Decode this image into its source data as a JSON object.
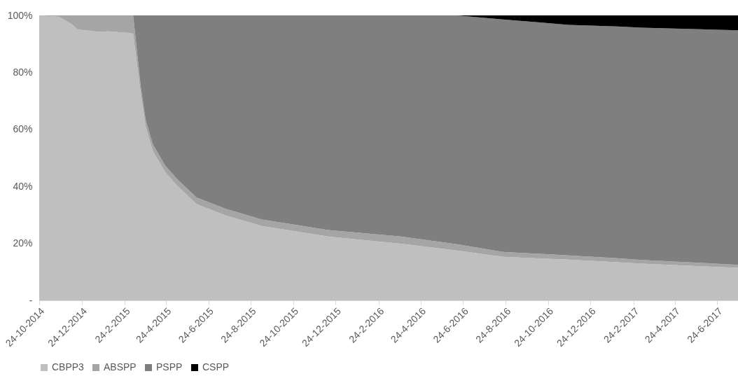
{
  "chart_data": {
    "type": "area",
    "stacked": true,
    "x": [
      "2014-10-24",
      "2014-11-22",
      "2014-12-11",
      "2014-12-18",
      "2015-01-15",
      "2015-02-01",
      "2015-03-05",
      "2015-03-08",
      "2015-03-19",
      "2015-03-26",
      "2015-04-05",
      "2015-04-23",
      "2015-05-10",
      "2015-06-07",
      "2015-07-19",
      "2015-09-09",
      "2015-12-13",
      "2016-03-26",
      "2016-06-15",
      "2016-08-20",
      "2016-11-22",
      "2017-01-31",
      "2017-03-07",
      "2017-07-24"
    ],
    "series": [
      {
        "name": "CBPP3",
        "color": "#bfbfbf",
        "values": [
          100,
          99.5,
          96.7,
          95.1,
          94.3,
          94.4,
          93.8,
          93.5,
          72.4,
          61,
          52.6,
          45,
          40.3,
          33.8,
          29.8,
          26.1,
          22.4,
          19.9,
          17.5,
          15.3,
          14.3,
          13.4,
          12.9,
          11.4
        ]
      },
      {
        "name": "ABSPP",
        "color": "#a5a5a5",
        "values": [
          0,
          0.5,
          3.3,
          4.9,
          5.7,
          5.6,
          6.2,
          6.5,
          2.5,
          2.3,
          2.3,
          2.3,
          2.3,
          2.3,
          2.3,
          2.3,
          2.3,
          2.5,
          2.2,
          1.7,
          1.5,
          1.4,
          1.3,
          1.1
        ]
      },
      {
        "name": "PSPP",
        "color": "#7f7f7f",
        "values": [
          0,
          0,
          0,
          0,
          0,
          0,
          0,
          0,
          25.1,
          36.7,
          45.1,
          52.7,
          57.4,
          63.9,
          67.9,
          71.6,
          75.3,
          77.6,
          80.3,
          81.6,
          80.9,
          81.3,
          81.5,
          82.3
        ]
      },
      {
        "name": "CSPP",
        "color": "#000000",
        "values": [
          0,
          0,
          0,
          0,
          0,
          0,
          0,
          0,
          0,
          0,
          0,
          0,
          0,
          0,
          0,
          0,
          0,
          0,
          0,
          1.4,
          3.3,
          3.9,
          4.3,
          5.2
        ]
      }
    ],
    "xlim": [
      "2014-10-24",
      "2017-07-24"
    ],
    "xticks": [
      {
        "value": "2014-10-24",
        "label": "24-10-2014"
      },
      {
        "value": "2014-12-24",
        "label": "24-12-2014"
      },
      {
        "value": "2015-02-24",
        "label": "24-2-2015"
      },
      {
        "value": "2015-04-24",
        "label": "24-4-2015"
      },
      {
        "value": "2015-06-24",
        "label": "24-6-2015"
      },
      {
        "value": "2015-08-24",
        "label": "24-8-2015"
      },
      {
        "value": "2015-10-24",
        "label": "24-10-2015"
      },
      {
        "value": "2015-12-24",
        "label": "24-12-2015"
      },
      {
        "value": "2016-02-24",
        "label": "24-2-2016"
      },
      {
        "value": "2016-04-24",
        "label": "24-4-2016"
      },
      {
        "value": "2016-06-24",
        "label": "24-6-2016"
      },
      {
        "value": "2016-08-24",
        "label": "24-8-2016"
      },
      {
        "value": "2016-10-24",
        "label": "24-10-2016"
      },
      {
        "value": "2016-12-24",
        "label": "24-12-2016"
      },
      {
        "value": "2017-02-24",
        "label": "24-2-2017"
      },
      {
        "value": "2017-04-24",
        "label": "24-4-2017"
      },
      {
        "value": "2017-06-24",
        "label": "24-6-2017"
      }
    ],
    "ylim": [
      0,
      100
    ],
    "yticks": [
      {
        "value": 0,
        "label": "-"
      },
      {
        "value": 20,
        "label": "20%"
      },
      {
        "value": 40,
        "label": "40%"
      },
      {
        "value": 60,
        "label": "60%"
      },
      {
        "value": 80,
        "label": "80%"
      },
      {
        "value": 100,
        "label": "100%"
      }
    ],
    "grid": false,
    "legend": "bottom"
  }
}
